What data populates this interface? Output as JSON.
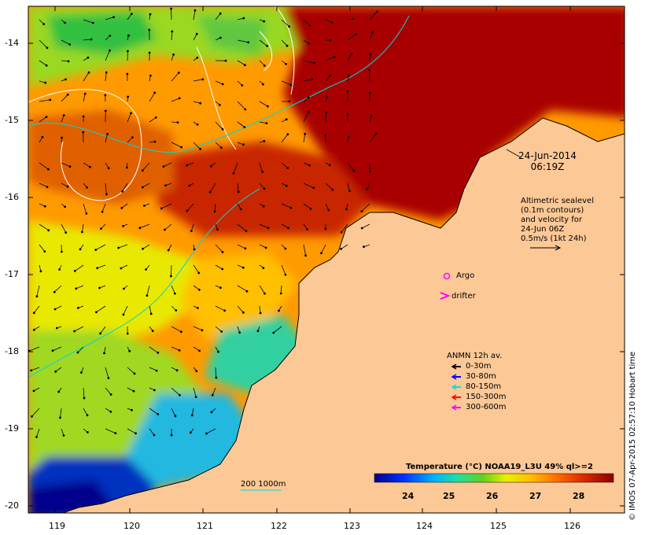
{
  "map": {
    "x_ticks": [
      "119",
      "120",
      "121",
      "122",
      "123",
      "124",
      "125",
      "126"
    ],
    "y_ticks": [
      "-14",
      "-15",
      "-16",
      "-17",
      "-18",
      "-19",
      "-20"
    ]
  },
  "annotations": {
    "datetime_line1": "24-Jun-2014",
    "datetime_line2": "06:19Z",
    "sealevel_lines": [
      "Altimetric sealevel",
      "(0.1m contours)",
      "and velocity for",
      "24-Jun 06Z",
      "0.5m/s (1kt 24h)"
    ],
    "argo_label": "Argo",
    "drifter_label": "drifter",
    "anmn_title": "ANMN 12h av.",
    "anmn_items": [
      {
        "label": "0-30m",
        "color": "#000000"
      },
      {
        "label": "30-80m",
        "color": "#0000ff"
      },
      {
        "label": "80-150m",
        "color": "#00e0e0"
      },
      {
        "label": "150-300m",
        "color": "#ff0000"
      },
      {
        "label": "300-600m",
        "color": "#ff00ff"
      }
    ],
    "isobath_label": "200  1000m"
  },
  "colorbar": {
    "title": "Temperature (°C) NOAA19_L3U 49% ql>=2",
    "labels": [
      "24",
      "25",
      "26",
      "27",
      "28"
    ]
  },
  "credit": "© IMOS 07-Apr-2015 02:57:10 Hobart time",
  "colors": {
    "land": "#fcc896",
    "warm": "#a80000",
    "cool": "#00008c"
  }
}
